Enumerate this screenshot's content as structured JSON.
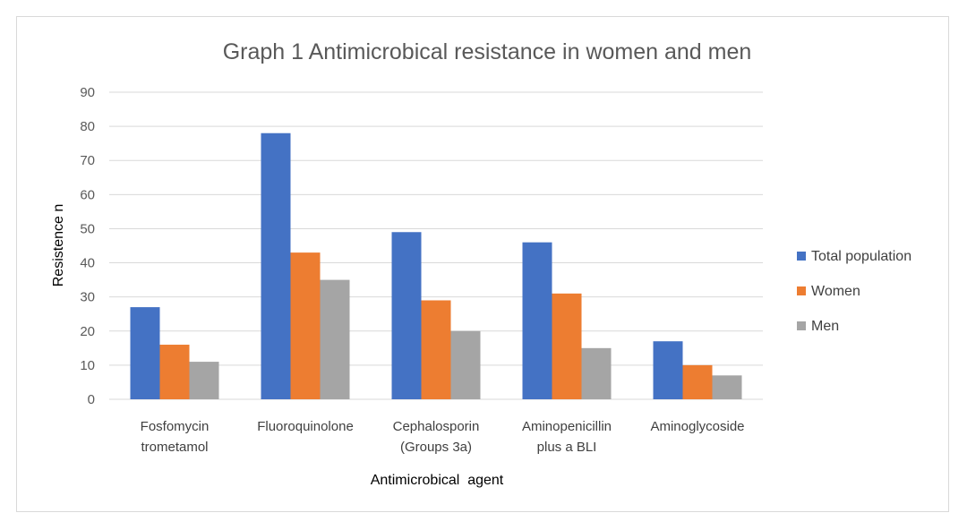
{
  "chart_data": {
    "type": "bar",
    "title": "Graph 1 Antimicrobical resistance in women and men",
    "xlabel": "Antimicrobical  agent",
    "ylabel": "Resistence n",
    "ylim": [
      0,
      90
    ],
    "yticks": [
      0,
      10,
      20,
      30,
      40,
      50,
      60,
      70,
      80,
      90
    ],
    "grid": true,
    "legend_position": "right",
    "categories": [
      [
        "Fosfomycin",
        "trometamol"
      ],
      [
        "Fluoroquinolone"
      ],
      [
        "Cephalosporin",
        "(Groups 3a)"
      ],
      [
        "Aminopenicillin",
        "plus a BLI"
      ],
      [
        "Aminoglycoside"
      ]
    ],
    "series": [
      {
        "name": "Total population",
        "color": "#4472c4",
        "values": [
          27,
          78,
          49,
          46,
          17
        ]
      },
      {
        "name": "Women",
        "color": "#ed7d31",
        "values": [
          16,
          43,
          29,
          31,
          10
        ]
      },
      {
        "name": "Men",
        "color": "#a5a5a5",
        "values": [
          11,
          35,
          20,
          15,
          7
        ]
      }
    ]
  }
}
